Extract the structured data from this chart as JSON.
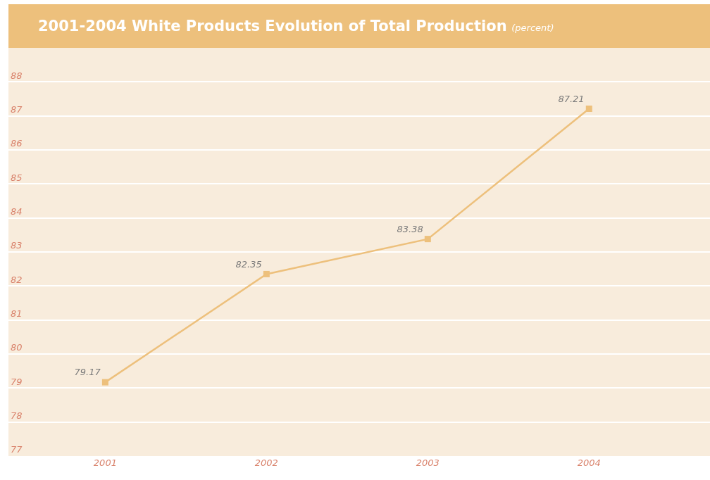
{
  "chart_data": {
    "type": "line",
    "title": "2001-2004 White Products Evolution of Total Production",
    "subtitle": "(percent)",
    "categories": [
      "2001",
      "2002",
      "2003",
      "2004"
    ],
    "series": [
      {
        "color": "#edc07c",
        "values": [
          79.17,
          82.35,
          83.38,
          87.21
        ]
      }
    ],
    "ylim": [
      77,
      89
    ],
    "yticks": [
      77,
      78,
      79,
      80,
      81,
      82,
      83,
      84,
      85,
      86,
      87,
      88
    ],
    "data_labels": true,
    "marker": "square",
    "grid": "y",
    "legend": false
  }
}
